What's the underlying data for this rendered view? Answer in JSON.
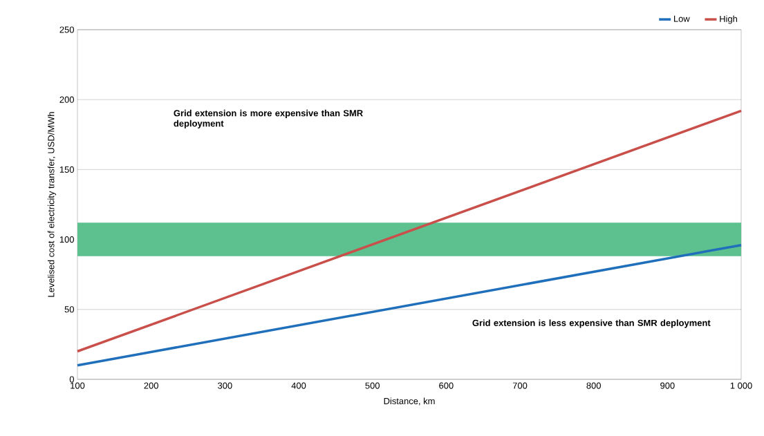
{
  "chart_data": {
    "type": "line",
    "xlabel": "Distance, km",
    "ylabel": "Levelised cost of electricity transfer, USD/MWh",
    "series": [
      {
        "name": "Low",
        "color": "#1f6fba",
        "values": [
          10,
          96
        ]
      },
      {
        "name": "High",
        "color": "#c9504a",
        "values": [
          20,
          192
        ]
      }
    ],
    "x": [
      100,
      1000
    ],
    "xlim": [
      100,
      1000
    ],
    "ylim": [
      0,
      250
    ],
    "xticks": [
      100,
      200,
      300,
      400,
      500,
      600,
      700,
      800,
      900,
      {
        "value": 1000,
        "label": "1 000"
      }
    ],
    "yticks": [
      0,
      50,
      100,
      150,
      200,
      250
    ],
    "bands": [
      {
        "axis": "y",
        "from": 88,
        "to": 112,
        "color": "#5cc08f"
      }
    ],
    "annotations": [
      "Grid extension is more expensive than SMR deployment",
      "Grid extension is less expensive than SMR deployment"
    ],
    "grid": "y",
    "legend": "top right",
    "marker": "none",
    "line_style": "solid"
  }
}
